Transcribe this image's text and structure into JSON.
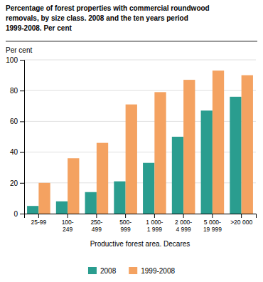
{
  "chart_data": {
    "type": "bar",
    "title": "Percentage of forest properties with commercial roundwood\nremovals, by size class. 2008 and the ten years period\n1999-2008. Per cent",
    "categories": [
      "25-99",
      "100-\n249",
      "250-\n499",
      "500-\n999",
      "1 000-\n1 999",
      "2 000-\n4 999",
      "5 000-\n19 999",
      ">20 000"
    ],
    "series": [
      {
        "name": "2008",
        "color": "#2a9d8f",
        "values": [
          5,
          8,
          14,
          21,
          33,
          50,
          67,
          76
        ]
      },
      {
        "name": "1999-2008",
        "color": "#f4a261",
        "values": [
          20,
          36,
          46,
          71,
          79,
          87,
          93,
          90
        ]
      }
    ],
    "y_label": "Per cent",
    "x_label": "Productive forest area. Decares",
    "ylim": [
      0,
      100
    ],
    "yticks": [
      0,
      20,
      40,
      60,
      80,
      100
    ],
    "grid": true,
    "legend": "bottom"
  }
}
